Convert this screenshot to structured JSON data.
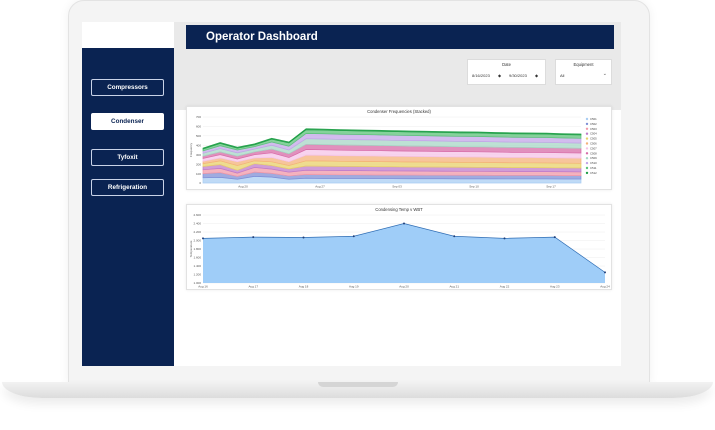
{
  "header": {
    "title": "Operator Dashboard"
  },
  "sidebar": {
    "items": [
      {
        "label": "Compressors",
        "active": false
      },
      {
        "label": "Condenser",
        "active": true
      },
      {
        "label": "Tyfoxit",
        "active": false
      },
      {
        "label": "Refrigeration",
        "active": false
      }
    ]
  },
  "filters": {
    "date": {
      "label": "Date",
      "start": "8/16/2023",
      "end": "9/30/2023"
    },
    "equipment": {
      "label": "Equipment",
      "value": "All"
    }
  },
  "colors": {
    "navy": "#0a2352",
    "accent_blue": "#2f6db4"
  },
  "chart_data": [
    {
      "type": "area",
      "title": "Condenser Frequencies (Stacked)",
      "ylabel": "Frequency",
      "x_ticks": [
        "Aug 20",
        "Aug 27",
        "Sep 03",
        "Sep 10",
        "Sep 17"
      ],
      "y_ticks": [
        "0",
        "100",
        "200",
        "300",
        "400",
        "500",
        "600",
        "700"
      ],
      "ylim": [
        0,
        700
      ],
      "legend_position": "right",
      "x": [
        0,
        2,
        4,
        6,
        8,
        10,
        12,
        14,
        16,
        18,
        20,
        22,
        24,
        26,
        28,
        30,
        32,
        34,
        36,
        38,
        40,
        42,
        44
      ],
      "series": [
        {
          "name": "C501",
          "color": "#a9cdf3",
          "values": [
            55,
            60,
            40,
            70,
            62,
            40,
            50,
            48,
            47,
            47,
            46,
            46,
            45,
            45,
            45,
            44,
            44,
            44,
            43,
            43,
            43,
            42,
            42
          ]
        },
        {
          "name": "C502",
          "color": "#7f8fd6",
          "values": [
            45,
            50,
            30,
            45,
            40,
            35,
            40,
            40,
            40,
            40,
            39,
            39,
            39,
            38,
            38,
            38,
            38,
            37,
            37,
            37,
            37,
            36,
            36
          ]
        },
        {
          "name": "C503",
          "color": "#f29aa9",
          "values": [
            40,
            45,
            35,
            50,
            45,
            40,
            45,
            45,
            44,
            44,
            44,
            43,
            43,
            43,
            42,
            42,
            42,
            42,
            41,
            41,
            41,
            41,
            40
          ]
        },
        {
          "name": "C504",
          "color": "#c07cc9",
          "values": [
            35,
            40,
            30,
            40,
            38,
            35,
            45,
            45,
            45,
            44,
            44,
            44,
            43,
            43,
            43,
            43,
            42,
            42,
            42,
            42,
            41,
            41,
            41
          ]
        },
        {
          "name": "C505",
          "color": "#e9d26b",
          "values": [
            30,
            40,
            50,
            30,
            40,
            35,
            55,
            55,
            54,
            54,
            54,
            53,
            53,
            53,
            52,
            52,
            52,
            51,
            51,
            51,
            51,
            50,
            50
          ]
        },
        {
          "name": "C506",
          "color": "#f4b27a",
          "values": [
            25,
            30,
            40,
            30,
            45,
            40,
            60,
            60,
            59,
            59,
            59,
            58,
            58,
            58,
            57,
            57,
            57,
            56,
            56,
            56,
            55,
            55,
            55
          ]
        },
        {
          "name": "C507",
          "color": "#f5c4e8",
          "values": [
            30,
            35,
            30,
            35,
            50,
            45,
            60,
            59,
            59,
            58,
            58,
            58,
            57,
            57,
            57,
            56,
            56,
            56,
            55,
            55,
            55,
            55,
            54
          ]
        },
        {
          "name": "C508",
          "color": "#d76ba7",
          "values": [
            25,
            30,
            30,
            30,
            40,
            40,
            55,
            55,
            55,
            54,
            54,
            54,
            53,
            53,
            53,
            52,
            52,
            52,
            52,
            51,
            51,
            51,
            50
          ]
        },
        {
          "name": "C509",
          "color": "#a7d7c5",
          "values": [
            30,
            35,
            35,
            30,
            40,
            40,
            60,
            60,
            59,
            59,
            59,
            58,
            58,
            58,
            57,
            57,
            57,
            57,
            56,
            56,
            56,
            55,
            55
          ]
        },
        {
          "name": "C510",
          "color": "#c3a5e8",
          "values": [
            25,
            30,
            30,
            25,
            35,
            40,
            55,
            55,
            55,
            55,
            54,
            54,
            54,
            53,
            53,
            53,
            53,
            52,
            52,
            52,
            52,
            51,
            51
          ]
        },
        {
          "name": "C511",
          "color": "#5cc37a",
          "values": [
            20,
            25,
            20,
            20,
            30,
            35,
            40,
            40,
            40,
            39,
            39,
            39,
            39,
            38,
            38,
            38,
            38,
            37,
            37,
            37,
            37,
            36,
            36
          ]
        },
        {
          "name": "C512",
          "color": "#1e9e46",
          "values": [
            10,
            10,
            10,
            10,
            10,
            10,
            10,
            10,
            10,
            10,
            10,
            10,
            10,
            10,
            10,
            10,
            10,
            10,
            10,
            10,
            10,
            10,
            10
          ]
        }
      ]
    },
    {
      "type": "area",
      "title": "Condensing Temp v WBT",
      "ylabel": "Temperature",
      "x": [
        "Aug 16",
        "Aug 17",
        "Aug 18",
        "Aug 19",
        "Aug 20",
        "Aug 21",
        "Aug 22",
        "Aug 23",
        "Aug 24"
      ],
      "values": [
        2.05,
        2.08,
        2.07,
        2.1,
        2.4,
        2.1,
        2.05,
        2.08,
        1.25
      ],
      "y_ticks": [
        "1.000",
        "1.200",
        "1.400",
        "1.600",
        "1.800",
        "2.000",
        "2.200",
        "2.400",
        "2.600"
      ],
      "ylim": [
        1.0,
        2.6
      ],
      "color": "#9fcdf8",
      "line_color": "#2f6db4"
    }
  ]
}
